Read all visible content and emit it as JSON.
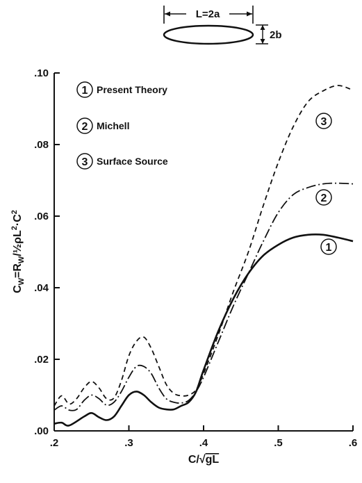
{
  "diagram": {
    "length_label": "L=2a",
    "width_label": "2b"
  },
  "chart_data": {
    "type": "line",
    "xlabel": "C/√gL",
    "ylabel": "CW=RW/½ρL²·C²",
    "xlim": [
      0.2,
      0.6
    ],
    "ylim": [
      0.0,
      0.1
    ],
    "x_ticks": [
      0.2,
      0.3,
      0.4,
      0.5,
      0.6
    ],
    "x_tick_labels": [
      ".2",
      ".3",
      ".4",
      ".5",
      ".6"
    ],
    "y_ticks": [
      0.0,
      0.02,
      0.04,
      0.06,
      0.08,
      0.1
    ],
    "y_tick_labels": [
      ".00",
      ".02",
      ".04",
      ".06",
      ".08",
      ".10"
    ],
    "grid": false,
    "legend_position": "top-left",
    "series": [
      {
        "key": "1",
        "name": "Present Theory",
        "style": "solid",
        "points": [
          [
            0.2,
            0.002
          ],
          [
            0.21,
            0.0023
          ],
          [
            0.22,
            0.0015
          ],
          [
            0.24,
            0.004
          ],
          [
            0.25,
            0.005
          ],
          [
            0.26,
            0.0038
          ],
          [
            0.27,
            0.003
          ],
          [
            0.28,
            0.004
          ],
          [
            0.29,
            0.007
          ],
          [
            0.3,
            0.01
          ],
          [
            0.31,
            0.011
          ],
          [
            0.32,
            0.01
          ],
          [
            0.33,
            0.008
          ],
          [
            0.34,
            0.0065
          ],
          [
            0.35,
            0.006
          ],
          [
            0.36,
            0.006
          ],
          [
            0.37,
            0.007
          ],
          [
            0.38,
            0.008
          ],
          [
            0.39,
            0.011
          ],
          [
            0.4,
            0.017
          ],
          [
            0.42,
            0.028
          ],
          [
            0.44,
            0.037
          ],
          [
            0.46,
            0.044
          ],
          [
            0.48,
            0.049
          ],
          [
            0.5,
            0.052
          ],
          [
            0.52,
            0.054
          ],
          [
            0.54,
            0.0548
          ],
          [
            0.56,
            0.0548
          ],
          [
            0.58,
            0.054
          ],
          [
            0.6,
            0.053
          ]
        ]
      },
      {
        "key": "2",
        "name": "Michell",
        "style": "dash-dot",
        "points": [
          [
            0.2,
            0.0058
          ],
          [
            0.21,
            0.007
          ],
          [
            0.22,
            0.0058
          ],
          [
            0.23,
            0.006
          ],
          [
            0.24,
            0.0085
          ],
          [
            0.25,
            0.01
          ],
          [
            0.26,
            0.009
          ],
          [
            0.27,
            0.0072
          ],
          [
            0.28,
            0.008
          ],
          [
            0.29,
            0.011
          ],
          [
            0.3,
            0.015
          ],
          [
            0.31,
            0.018
          ],
          [
            0.32,
            0.018
          ],
          [
            0.33,
            0.016
          ],
          [
            0.34,
            0.012
          ],
          [
            0.35,
            0.009
          ],
          [
            0.36,
            0.008
          ],
          [
            0.37,
            0.0078
          ],
          [
            0.38,
            0.0085
          ],
          [
            0.39,
            0.011
          ],
          [
            0.4,
            0.015
          ],
          [
            0.42,
            0.025
          ],
          [
            0.44,
            0.035
          ],
          [
            0.46,
            0.044
          ],
          [
            0.48,
            0.053
          ],
          [
            0.5,
            0.061
          ],
          [
            0.52,
            0.066
          ],
          [
            0.54,
            0.068
          ],
          [
            0.56,
            0.069
          ],
          [
            0.58,
            0.0692
          ],
          [
            0.6,
            0.069
          ]
        ]
      },
      {
        "key": "3",
        "name": "Surface Source",
        "style": "dashed",
        "points": [
          [
            0.2,
            0.007
          ],
          [
            0.21,
            0.0098
          ],
          [
            0.22,
            0.0075
          ],
          [
            0.23,
            0.009
          ],
          [
            0.24,
            0.012
          ],
          [
            0.25,
            0.0138
          ],
          [
            0.26,
            0.012
          ],
          [
            0.27,
            0.009
          ],
          [
            0.28,
            0.0092
          ],
          [
            0.29,
            0.014
          ],
          [
            0.3,
            0.021
          ],
          [
            0.31,
            0.025
          ],
          [
            0.32,
            0.0262
          ],
          [
            0.33,
            0.023
          ],
          [
            0.34,
            0.018
          ],
          [
            0.35,
            0.013
          ],
          [
            0.36,
            0.0105
          ],
          [
            0.37,
            0.0098
          ],
          [
            0.38,
            0.01
          ],
          [
            0.39,
            0.0115
          ],
          [
            0.4,
            0.016
          ],
          [
            0.42,
            0.027
          ],
          [
            0.44,
            0.039
          ],
          [
            0.46,
            0.05
          ],
          [
            0.48,
            0.063
          ],
          [
            0.5,
            0.075
          ],
          [
            0.52,
            0.085
          ],
          [
            0.54,
            0.092
          ],
          [
            0.56,
            0.095
          ],
          [
            0.58,
            0.0965
          ],
          [
            0.6,
            0.0952
          ]
        ]
      }
    ]
  }
}
